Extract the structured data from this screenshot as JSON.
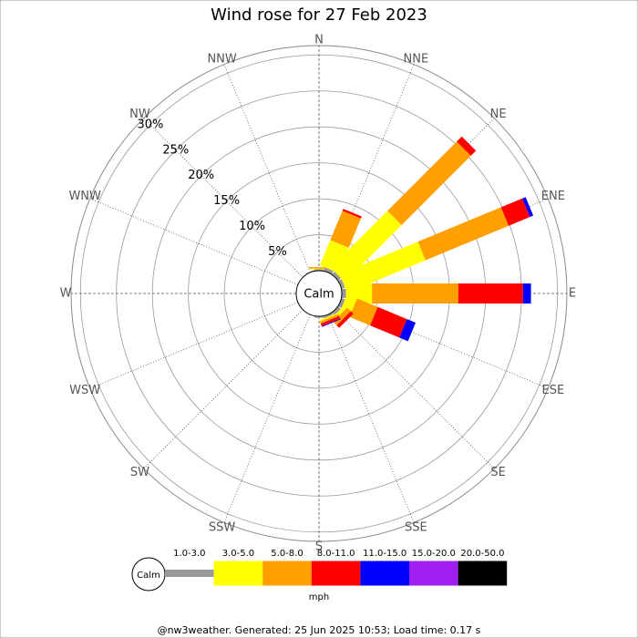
{
  "chart_data": {
    "type": "wind_rose",
    "title": "Wind rose for 27 Feb 2023",
    "center_label": "Calm",
    "legend_calm_label": "Calm",
    "legend_unit": "mph",
    "categories": [
      "N",
      "NNE",
      "NE",
      "ENE",
      "E",
      "ESE",
      "SE",
      "SSE",
      "S",
      "SSW",
      "SW",
      "WSW",
      "W",
      "WNW",
      "NW",
      "NNW"
    ],
    "series": [
      {
        "name": "1.0-3.0",
        "color": "#999999",
        "values": [
          0.2,
          0.5,
          0.5,
          0.5,
          0.6,
          0.5,
          0.5,
          0.3,
          0.2,
          0,
          0,
          0,
          0,
          0,
          0,
          0.1
        ]
      },
      {
        "name": "3.0-5.0",
        "color": "#ffff00",
        "values": [
          0.1,
          3.8,
          11.2,
          11.8,
          3.6,
          1.5,
          0.5,
          0.2,
          0,
          0,
          0,
          0,
          0,
          0,
          0,
          0
        ]
      },
      {
        "name": "5.0-8.0",
        "color": "#ff9f00",
        "values": [
          0.2,
          4.4,
          13.6,
          12.5,
          12.0,
          3.1,
          0.7,
          0.3,
          0,
          0,
          0,
          0,
          0,
          0,
          0,
          0
        ]
      },
      {
        "name": "8.0-11.0",
        "color": "#ff0000",
        "values": [
          0,
          0.3,
          1.0,
          3.2,
          9.0,
          4.4,
          0.5,
          0.4,
          0,
          0,
          0,
          0,
          0,
          0,
          0,
          0
        ]
      },
      {
        "name": "11.0-15.0",
        "color": "#0000ff",
        "values": [
          0,
          0,
          0,
          0.5,
          1.1,
          1.3,
          0,
          0.1,
          0,
          0,
          0,
          0,
          0,
          0,
          0,
          0
        ]
      },
      {
        "name": "15.0-20.0",
        "color": "#a020f0",
        "values": [
          0,
          0,
          0,
          0,
          0,
          0,
          0,
          0,
          0,
          0,
          0,
          0,
          0,
          0,
          0,
          0
        ]
      },
      {
        "name": "20.0-50.0",
        "color": "#000000",
        "values": [
          0,
          0,
          0,
          0,
          0,
          0,
          0,
          0,
          0,
          0,
          0,
          0,
          0,
          0,
          0,
          0
        ]
      }
    ],
    "rlim": [
      0,
      31.3
    ],
    "rticks": [
      {
        "value": 5,
        "label": "5%"
      },
      {
        "value": 10,
        "label": "10%"
      },
      {
        "value": 15,
        "label": "15%"
      },
      {
        "value": 20,
        "label": "20%"
      },
      {
        "value": 25,
        "label": "25%"
      },
      {
        "value": 30,
        "label": "30%"
      }
    ],
    "grid": true
  },
  "footer": "@nw3weather. Generated: 25 Jun 2025 10:53; Load time: 0.17 s"
}
